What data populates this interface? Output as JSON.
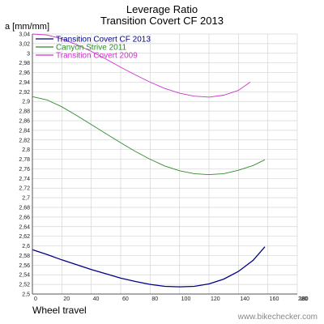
{
  "title_lines": [
    "Leverage Ratio",
    "Transition Covert CF 2013"
  ],
  "watermark": "www.bikechecker.com",
  "chart_data": {
    "type": "line",
    "title": "Leverage Ratio\nTransition Covert CF 2013",
    "xlabel": "Wheel travel",
    "ylabel": "a [mm/mm]",
    "xlim": [
      0,
      180
    ],
    "ylim": [
      2.5,
      3.04
    ],
    "x_ticks": [
      0,
      20,
      40,
      60,
      80,
      100,
      120,
      140,
      160,
      180
    ],
    "x_tick_labels": [
      "0",
      "20",
      "40",
      "60",
      "80",
      "100",
      "120",
      "140",
      "160",
      "180"
    ],
    "y_ticks": [
      2.5,
      2.52,
      2.54,
      2.56,
      2.58,
      2.6,
      2.62,
      2.64,
      2.66,
      2.68,
      2.7,
      2.72,
      2.74,
      2.76,
      2.78,
      2.8,
      2.82,
      2.84,
      2.86,
      2.88,
      2.9,
      2.92,
      2.94,
      2.96,
      2.98,
      3.0,
      3.02,
      3.04
    ],
    "y_tick_labels": [
      "2,5",
      "2,52",
      "2,54",
      "2,56",
      "2,58",
      "2,6",
      "2,62",
      "2,64",
      "2,66",
      "2,68",
      "2,7",
      "2,72",
      "2,74",
      "2,76",
      "2,78",
      "2,8",
      "2,82",
      "2,84",
      "2,86",
      "2,88",
      "2,9",
      "2,92",
      "2,94",
      "2,96",
      "2,98",
      "3",
      "3,02",
      "3,04"
    ],
    "x_axis_end_label": "280",
    "grid": true,
    "legend_position": "top-left",
    "series": [
      {
        "name": "Transition Covert CF 2013",
        "color": "#00008b",
        "x": [
          0,
          10,
          20,
          30,
          40,
          50,
          60,
          70,
          80,
          90,
          100,
          110,
          120,
          130,
          140,
          150,
          158
        ],
        "y": [
          2.592,
          2.582,
          2.571,
          2.561,
          2.551,
          2.542,
          2.533,
          2.526,
          2.52,
          2.516,
          2.515,
          2.516,
          2.521,
          2.531,
          2.547,
          2.57,
          2.598
        ]
      },
      {
        "name": "Canyon Strive 2011",
        "color": "#2e8b2e",
        "x": [
          0,
          10,
          20,
          30,
          40,
          50,
          60,
          70,
          80,
          90,
          100,
          110,
          120,
          130,
          140,
          150,
          158
        ],
        "y": [
          2.91,
          2.903,
          2.889,
          2.871,
          2.852,
          2.833,
          2.814,
          2.796,
          2.78,
          2.766,
          2.756,
          2.75,
          2.748,
          2.75,
          2.757,
          2.767,
          2.779
        ]
      },
      {
        "name": "Transition Covert 2009",
        "color": "#cc33cc",
        "x": [
          0,
          10,
          20,
          30,
          40,
          50,
          60,
          70,
          80,
          90,
          100,
          110,
          120,
          130,
          140,
          148
        ],
        "y": [
          3.04,
          3.038,
          3.03,
          3.018,
          3.004,
          2.988,
          2.971,
          2.955,
          2.94,
          2.927,
          2.917,
          2.911,
          2.909,
          2.913,
          2.923,
          2.94
        ]
      }
    ]
  }
}
